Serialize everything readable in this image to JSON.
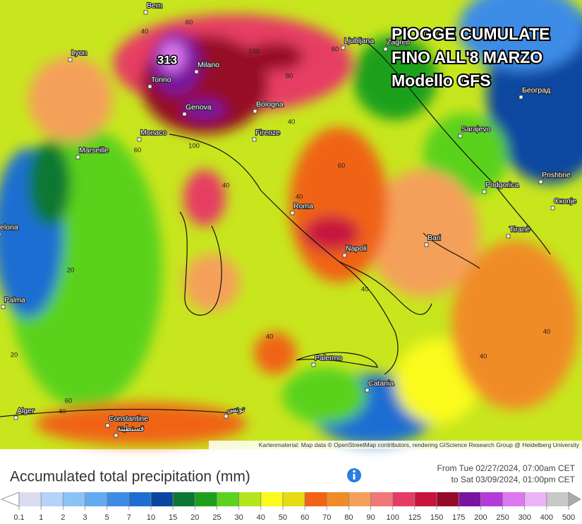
{
  "overlay_title": [
    "PIOGGE CUMULATE",
    "FINO ALL'8 MARZO",
    "Modello GFS"
  ],
  "cities": [
    "Bern",
    "Lyon",
    "Torino",
    "Milano",
    "Genova",
    "Bologna",
    "Monaco",
    "Marseille",
    "Firenze",
    "Ljubljana",
    "Zagreb",
    "Sarajevo",
    "Београд",
    "Podgorica",
    "Prishtinë",
    "Скопје",
    "Roma",
    "Napoli",
    "Bari",
    "Tiranë",
    "Palma",
    "elona",
    "Palermo",
    "Catania",
    "Alger",
    "Constantine",
    "قسنطينة",
    "تونس"
  ],
  "contour_labels": [
    313,
    60,
    40,
    100,
    60,
    80,
    40,
    100,
    60,
    40,
    60,
    40,
    20,
    40,
    40,
    40,
    40,
    60,
    40,
    20
  ],
  "attribution": "Kartenmaterial: Map data © OpenStreetMap contributors, rendering GIScience Research Group @ Heidelberg University",
  "legend": {
    "title": "Accumulated total precipitation (mm)",
    "period": [
      "From Tue 02/27/2024, 07:00am CET",
      "to Sat 03/09/2024, 01:00pm CET"
    ],
    "ticks": [
      0.1,
      1,
      2,
      3,
      5,
      7,
      10,
      15,
      20,
      25,
      30,
      40,
      50,
      60,
      70,
      80,
      90,
      100,
      125,
      150,
      175,
      200,
      250,
      300,
      400,
      500
    ],
    "colors": [
      "#dcdcf0",
      "#b4d2fa",
      "#8cc3f5",
      "#64aaf0",
      "#3c8ce6",
      "#1e6ed2",
      "#0a46a0",
      "#0a7832",
      "#1ea01e",
      "#5ad21e",
      "#b4e61e",
      "#fafa1e",
      "#e6dc14",
      "#f06414",
      "#f08c28",
      "#f5a05a",
      "#f07878",
      "#e63c64",
      "#c8143c",
      "#960a28",
      "#7814a0",
      "#b43cdc",
      "#dc78f0",
      "#ebb4f5",
      "#c8c8c8"
    ]
  }
}
